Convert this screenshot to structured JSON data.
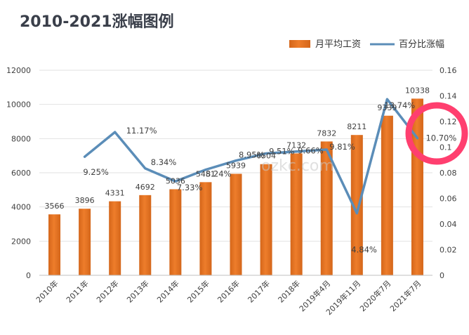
{
  "colors": {
    "bar": "#ee7d2b",
    "bar_dark": "#d4661a",
    "line": "#5b8db8",
    "circle": "#ff3f6f",
    "grid": "#e2e2e2",
    "title": "#3a3f4a"
  },
  "watermark": "ozkc.com",
  "chart_data": {
    "type": "bar+line",
    "title": "2010-2021涨幅图例",
    "categories": [
      "2010年",
      "2011年",
      "2012年",
      "2013年",
      "2014年",
      "2015年",
      "2016年",
      "2017年",
      "2018年",
      "2019年4月",
      "2019年11月",
      "2020年7月",
      "2021年7月"
    ],
    "series": [
      {
        "name": "月平均工资",
        "type": "bar",
        "axis": "left",
        "values": [
          3566,
          3896,
          4331,
          4692,
          5036,
          5451,
          5939,
          6504,
          7132,
          7832,
          8211,
          9339,
          10338
        ],
        "labels": [
          "3566",
          "3896",
          "4331",
          "4692",
          "5036",
          "5451",
          "5939",
          "6504",
          "7132",
          "7832",
          "8211",
          "9339",
          "10338"
        ]
      },
      {
        "name": "百分比涨幅",
        "type": "line",
        "axis": "right",
        "values": [
          null,
          0.0925,
          0.1117,
          0.0834,
          0.0733,
          0.0824,
          0.0895,
          0.0951,
          0.0966,
          0.0981,
          0.0484,
          0.1374,
          0.107
        ],
        "labels": [
          "",
          "9.25%",
          "11.17%",
          "8.34%",
          "7.33%",
          "8.24%",
          "8.95%",
          "9.51%",
          "9.66%",
          "9.81%",
          "4.84%",
          "13.74%",
          "10.70%"
        ]
      }
    ],
    "left_axis": {
      "min": 0,
      "max": 12000,
      "ticks": [
        0,
        2000,
        4000,
        6000,
        8000,
        10000,
        12000
      ],
      "tick_labels": [
        "0",
        "2000",
        "4000",
        "6000",
        "8000",
        "10000",
        "12000"
      ]
    },
    "right_axis": {
      "min": 0,
      "max": 0.16,
      "ticks": [
        0,
        0.02,
        0.04,
        0.06,
        0.08,
        0.1,
        0.12,
        0.14,
        0.16
      ],
      "tick_labels": [
        "0",
        "0.02",
        "0.04",
        "0.06",
        "0.08",
        "0.1",
        "0.12",
        "0.14",
        "0.16"
      ]
    },
    "grid": true,
    "legend_position": "top-right",
    "annotation": "red circle around the 2021年7月 point"
  }
}
